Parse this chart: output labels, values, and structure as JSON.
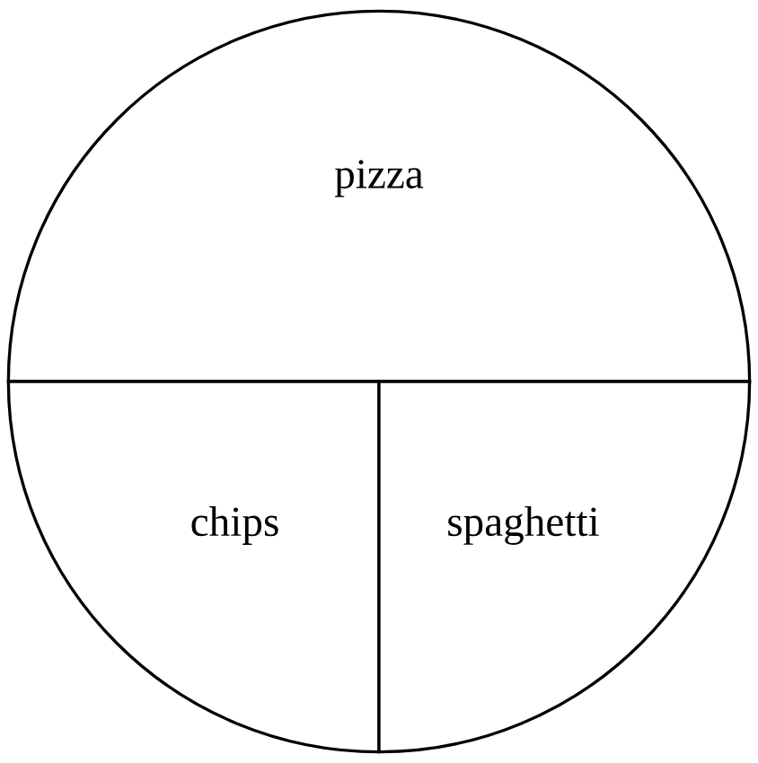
{
  "chart_data": {
    "type": "pie",
    "categories": [
      "pizza",
      "chips",
      "spaghetti"
    ],
    "values": [
      50,
      25,
      25
    ],
    "colors": [
      "#ffffff",
      "#ffffff",
      "#ffffff"
    ]
  }
}
